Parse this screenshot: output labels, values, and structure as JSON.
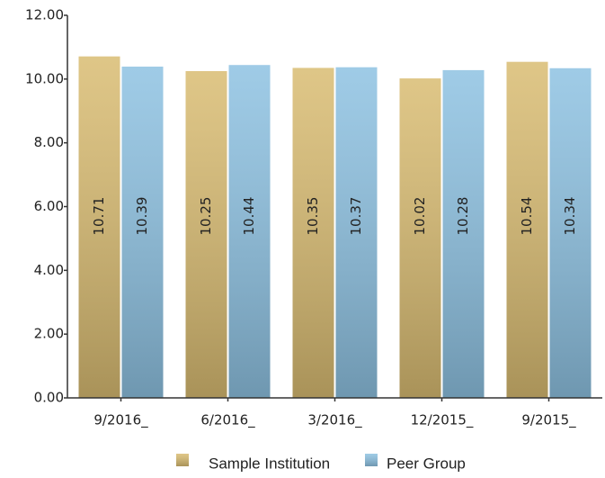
{
  "chart_data": {
    "type": "bar",
    "categories": [
      "9/2016_",
      "6/2016_",
      "3/2016_",
      "12/2015_",
      "9/2015_"
    ],
    "series": [
      {
        "name": "Sample Institution",
        "color": "#d9bc72",
        "values": [
          10.71,
          10.25,
          10.35,
          10.02,
          10.54
        ]
      },
      {
        "name": "Peer Group",
        "color": "#8ec2e2",
        "values": [
          10.39,
          10.44,
          10.37,
          10.28,
          10.34
        ]
      }
    ],
    "ylim": [
      0,
      12
    ],
    "yticks": [
      {
        "value": 0,
        "label": "0.00"
      },
      {
        "value": 2,
        "label": "2.00"
      },
      {
        "value": 4,
        "label": "4.00"
      },
      {
        "value": 6,
        "label": "6.00"
      },
      {
        "value": 8,
        "label": "8.00"
      },
      {
        "value": 10,
        "label": "10.00"
      },
      {
        "value": 12,
        "label": "12.00"
      }
    ],
    "legend": "bottom"
  }
}
